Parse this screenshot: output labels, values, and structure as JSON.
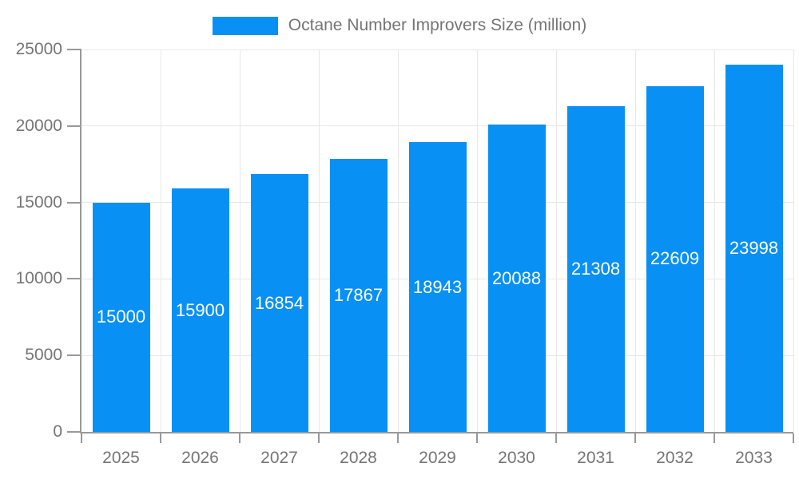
{
  "chart_data": {
    "type": "bar",
    "title": "Octane Number Improvers Size (million)",
    "categories": [
      "2025",
      "2026",
      "2027",
      "2028",
      "2029",
      "2030",
      "2031",
      "2032",
      "2033"
    ],
    "series": [
      {
        "name": "Octane Number Improvers Size (million)",
        "values": [
          15000,
          15900,
          16854,
          17867,
          18943,
          20088,
          21308,
          22609,
          23998
        ]
      }
    ],
    "xlabel": "",
    "ylabel": "",
    "ylim": [
      0,
      25000
    ],
    "yticks": [
      0,
      5000,
      10000,
      15000,
      20000,
      25000
    ],
    "grid": true,
    "legend_position": "top",
    "value_labels_position": "inside-center",
    "colors": {
      "bar": "#0890f5",
      "value_label": "#ffffff",
      "axis_line": "#999999",
      "grid_line": "#e8e8e8",
      "axis_text": "#757575",
      "legend_text": "#757575"
    }
  }
}
